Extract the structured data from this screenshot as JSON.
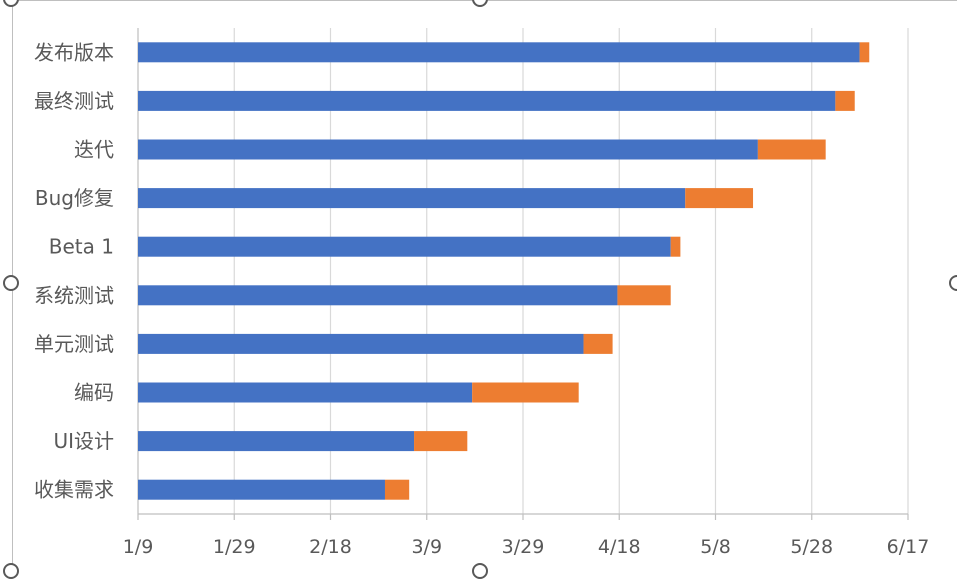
{
  "chart_data": {
    "type": "bar",
    "orientation": "horizontal",
    "stacked": true,
    "title": "",
    "categories": [
      "发布版本",
      "最终测试",
      "迭代",
      "Bug修复",
      "Beta 1",
      "系统测试",
      "单元测试",
      "编码",
      "UI设计",
      "收集需求"
    ],
    "series": [
      {
        "color": "#4472c4",
        "values": [
          "2021-06-07",
          "2021-06-02",
          "2021-05-17",
          "2021-05-02",
          "2021-04-29",
          "2021-04-18",
          "2021-04-11",
          "2021-03-19",
          "2021-03-07",
          "2021-03-01"
        ]
      },
      {
        "color": "#ed7d31",
        "values": [
          2,
          4,
          14,
          14,
          2,
          11,
          6,
          22,
          11,
          5
        ]
      }
    ],
    "series_units": [
      "start date",
      "duration (days)"
    ],
    "x_axis": {
      "type": "date",
      "range": [
        "2021-01-09",
        "2021-06-17"
      ],
      "tick_labels": [
        "1/9",
        "1/29",
        "2/18",
        "3/9",
        "3/29",
        "4/18",
        "5/8",
        "5/28",
        "6/17"
      ],
      "grid": true
    },
    "legend": "none"
  },
  "colors": {
    "start": "#4472c4",
    "duration": "#ed7d31",
    "grid": "#d9d9d9",
    "axis": "#bfbfbf",
    "text": "#595959"
  },
  "selection_handles": [
    "circle-handle",
    "circle-handle",
    "circle-handle",
    "circle-handle",
    "circle-handle",
    "circle-handle"
  ]
}
